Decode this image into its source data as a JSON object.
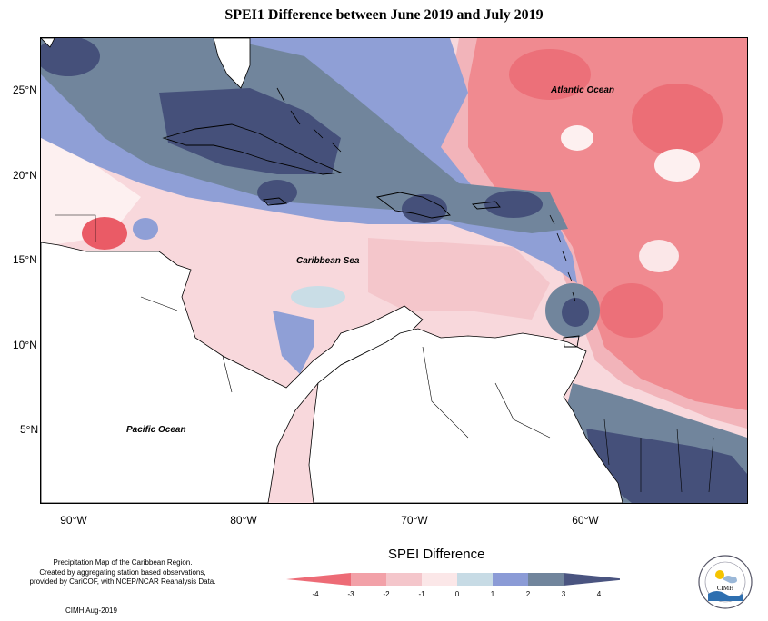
{
  "title": "SPEI1 Difference between June 2019 and July 2019",
  "map": {
    "latitude_labels": [
      "25°N",
      "20°N",
      "15°N",
      "10°N",
      "5°N"
    ],
    "longitude_labels": [
      "90°W",
      "80°W",
      "70°W",
      "60°W"
    ],
    "ocean_labels": {
      "atlantic": "Atlantic Ocean",
      "caribbean": "Caribbean Sea",
      "pacific": "Pacific Ocean"
    },
    "colors": {
      "background_pink": "#f8d8dc",
      "light_pink": "#f2b4ba",
      "red": "#f08a90",
      "strong_red": "#ea5b66",
      "near_zero": "#fdf0f0",
      "light_blue": "#c9dde6",
      "blue": "#8f9fd6",
      "slate": "#71859c",
      "navy": "#45507a"
    }
  },
  "legend": {
    "title": "SPEI Difference",
    "ticks": [
      "-4",
      "-3",
      "-2",
      "-1",
      "0",
      "1",
      "2",
      "3",
      "4"
    ],
    "colors": [
      "#ed6b76",
      "#f2a1a8",
      "#f4c6cb",
      "#fbe7e8",
      "#c7dbe5",
      "#8b9bd6",
      "#71859c",
      "#4a5480"
    ]
  },
  "credit": {
    "line1": "Precipitation Map of the Caribbean Region.",
    "line2": "Created by aggregating station based observations,",
    "line3": "provided by CariCOF, with NCEP/NCAR Reanalysis Data.",
    "date": "CIMH Aug-2019"
  },
  "logo": {
    "text": "CIMH"
  }
}
